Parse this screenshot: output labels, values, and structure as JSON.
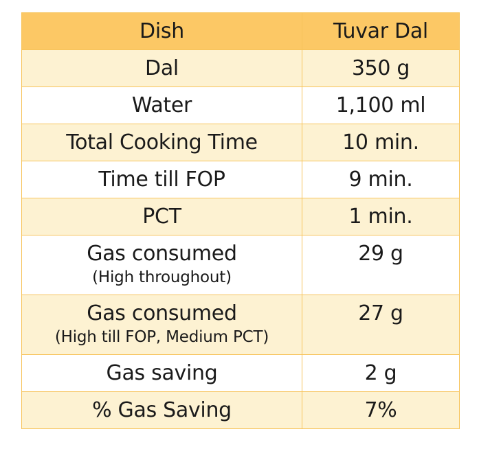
{
  "table": {
    "headers": [
      "Dish",
      "Tuvar Dal"
    ],
    "rows": [
      {
        "label": "Dal",
        "sub": "",
        "value": "350 g"
      },
      {
        "label": "Water",
        "sub": "",
        "value": "1,100 ml"
      },
      {
        "label": "Total Cooking Time",
        "sub": "",
        "value": "10 min."
      },
      {
        "label": "Time till FOP",
        "sub": "",
        "value": "9 min."
      },
      {
        "label": "PCT",
        "sub": "",
        "value": "1 min."
      },
      {
        "label": "Gas consumed",
        "sub": "(High throughout)",
        "value": "29 g"
      },
      {
        "label": "Gas consumed",
        "sub": "(High till FOP, Medium PCT)",
        "value": "27 g"
      },
      {
        "label": "Gas saving",
        "sub": "",
        "value": "2 g"
      },
      {
        "label": "% Gas Saving",
        "sub": "",
        "value": "7%"
      }
    ]
  },
  "colors": {
    "header_bg": "#fcc865",
    "row_shade": "#fdf2d2",
    "row_plain": "#ffffff",
    "border": "#f7c35a"
  }
}
